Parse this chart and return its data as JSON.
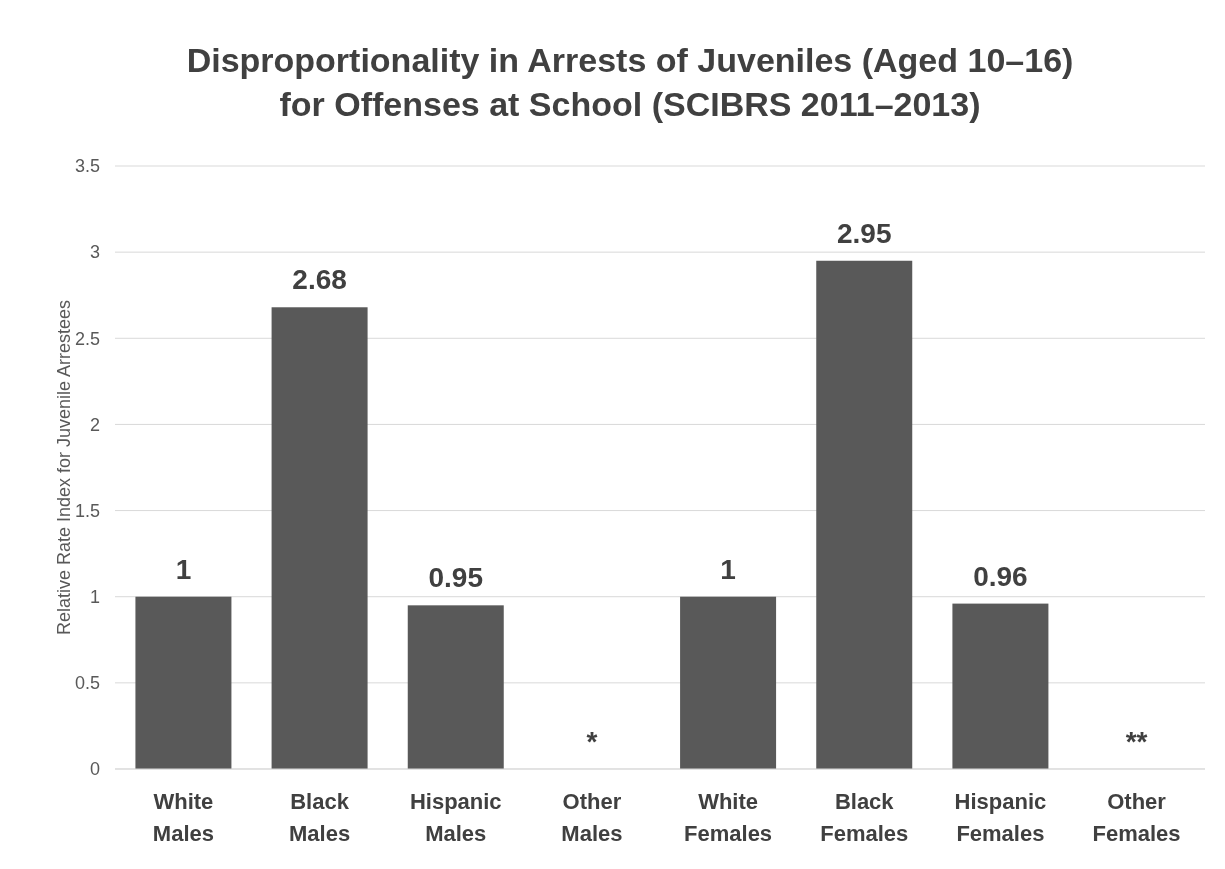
{
  "chart_data": {
    "type": "bar",
    "title": "Disproportionality in Arrests of Juveniles (Aged 10–16)\nfor Offenses at School (SCIBRS 2011–2013)",
    "ylabel": "Relative Rate Index for Juvenile Arrestees",
    "categories": [
      "White Males",
      "Black Males",
      "Hispanic Males",
      "Other Males",
      "White Females",
      "Black Females",
      "Hispanic Females",
      "Other Females"
    ],
    "values": [
      1,
      2.68,
      0.95,
      null,
      1,
      2.95,
      0.96,
      null
    ],
    "value_labels": [
      "1",
      "2.68",
      "0.95",
      "*",
      "1",
      "2.95",
      "0.96",
      "**"
    ],
    "color": "#595959",
    "ylim": [
      0,
      3.5
    ],
    "yticks": [
      0,
      0.5,
      1,
      1.5,
      2,
      2.5,
      3,
      3.5
    ],
    "grid": "y"
  }
}
